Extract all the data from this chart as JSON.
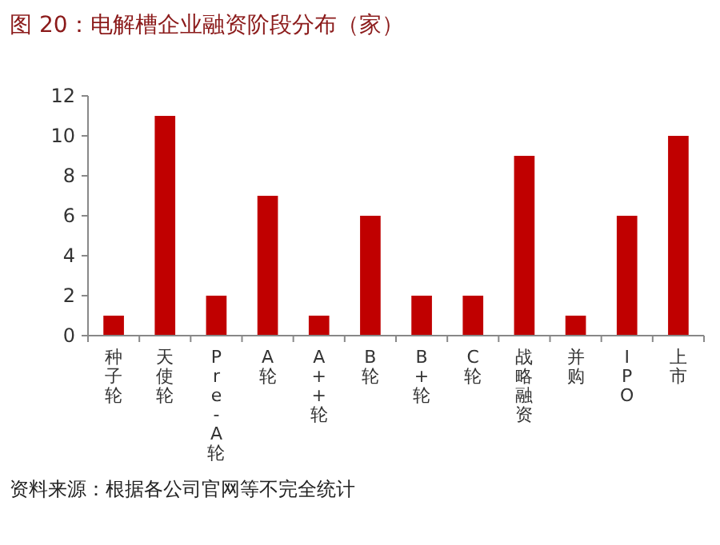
{
  "chart_data": {
    "type": "bar",
    "title": "图 20：电解槽企业融资阶段分布（家）",
    "categories": [
      "种子轮",
      "天使轮",
      "Pre-A轮",
      "A轮",
      "A++轮",
      "B轮",
      "B+轮",
      "C轮",
      "战略融资",
      "并购",
      "IPO",
      "上市"
    ],
    "values": [
      1,
      11,
      2,
      7,
      1,
      6,
      2,
      2,
      9,
      1,
      6,
      10
    ],
    "color": "#c00000",
    "ylim": [
      0,
      12
    ],
    "yticks": [
      0,
      2,
      4,
      6,
      8,
      10,
      12
    ],
    "grid": false,
    "annotations": [
      "资料来源：根据各公司官网等不完全统计"
    ]
  }
}
